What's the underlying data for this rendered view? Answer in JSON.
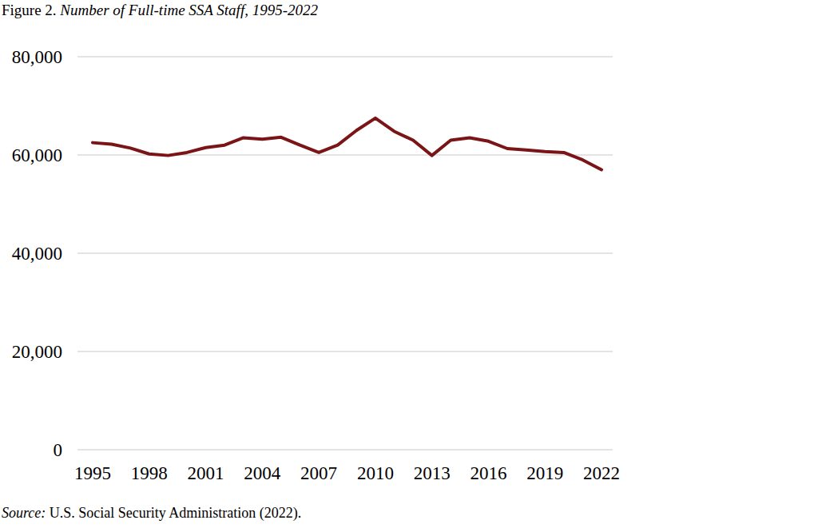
{
  "chart_data": {
    "type": "line",
    "title": "Figure 2. Number of Full-time SSA Staff, 1995-2022",
    "source": "Source: U.S. Social Security Administration (2022).",
    "x": [
      1995,
      1996,
      1997,
      1998,
      1999,
      2000,
      2001,
      2002,
      2003,
      2004,
      2005,
      2006,
      2007,
      2008,
      2009,
      2010,
      2011,
      2012,
      2013,
      2014,
      2015,
      2016,
      2017,
      2018,
      2019,
      2020,
      2021,
      2022
    ],
    "values": [
      62500,
      62200,
      61400,
      60200,
      59900,
      60500,
      61500,
      62000,
      63500,
      63200,
      63600,
      62000,
      60500,
      62000,
      65000,
      67500,
      64800,
      63000,
      59900,
      63000,
      63500,
      62800,
      61300,
      61000,
      60700,
      60500,
      59000,
      57000
    ],
    "color": "#7b1416",
    "xlim": [
      1995,
      2022
    ],
    "xticks": [
      1995,
      1998,
      2001,
      2004,
      2007,
      2010,
      2013,
      2016,
      2019,
      2022
    ],
    "ylim": [
      0,
      80000
    ],
    "yticks": [
      0,
      {
        "value": 20000,
        "label": "20,000"
      },
      {
        "value": 40000,
        "label": "40,000"
      },
      {
        "value": 60000,
        "label": "60,000"
      },
      {
        "value": 80000,
        "label": "80,000"
      }
    ],
    "grid": true
  }
}
